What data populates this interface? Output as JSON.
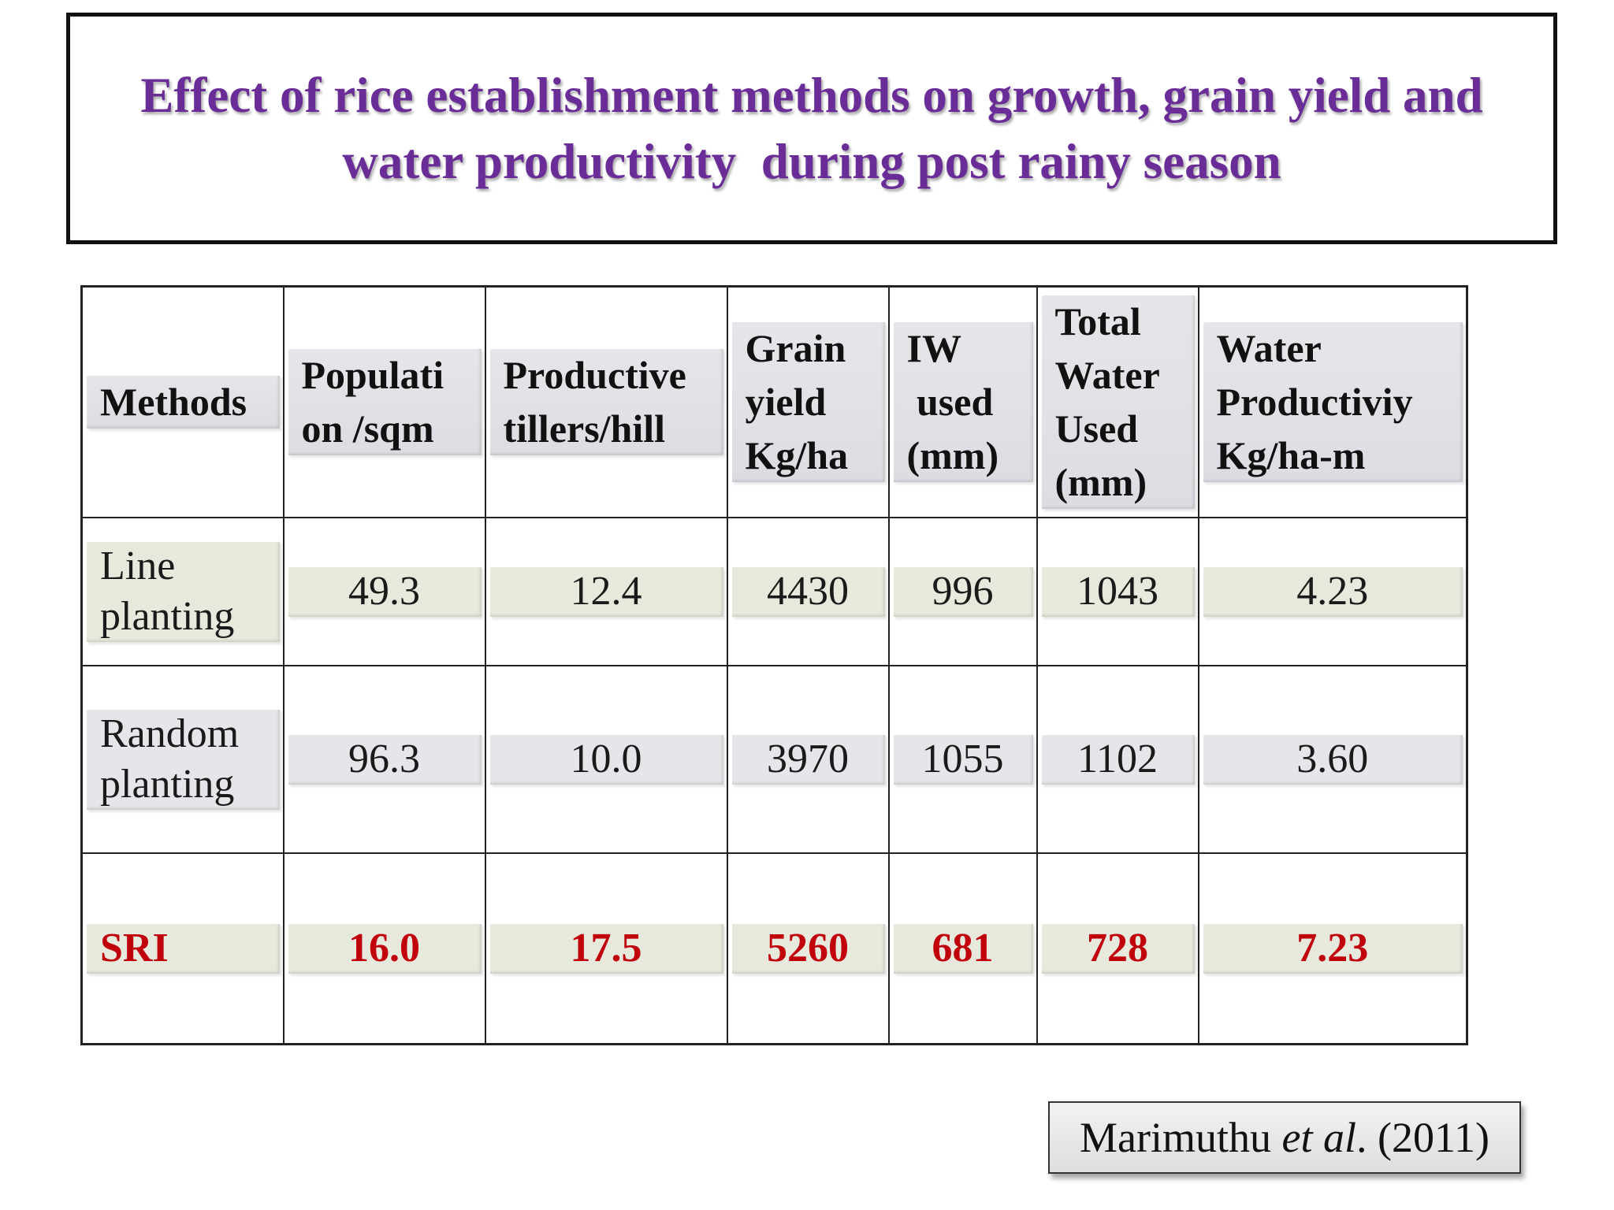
{
  "title": {
    "line1": "Effect of rice establishment methods on growth, grain yield and",
    "line2": "water productivity  during post rainy season"
  },
  "table": {
    "headers": [
      [
        "Methods"
      ],
      [
        "Populati",
        "on /sqm"
      ],
      [
        "Productive",
        "tillers/hill"
      ],
      [
        "Grain",
        "yield",
        "Kg/ha"
      ],
      [
        "IW",
        " used",
        "(mm)"
      ],
      [
        "Total",
        "Water",
        "Used",
        "(mm)"
      ],
      [
        "Water",
        "Productiviy",
        "Kg/ha-m"
      ]
    ],
    "rows": [
      {
        "method": [
          "Line",
          "planting"
        ],
        "values": [
          "49.3",
          "12.4",
          "4430",
          "996",
          "1043",
          "4.23"
        ]
      },
      {
        "method": [
          "Random",
          "planting"
        ],
        "values": [
          "96.3",
          "10.0",
          "3970",
          "1055",
          "1102",
          "3.60"
        ]
      },
      {
        "method": [
          "SRI"
        ],
        "values": [
          "16.0",
          "17.5",
          "5260",
          "681",
          "728",
          "7.23"
        ]
      }
    ]
  },
  "citation": {
    "author": "Marimuthu ",
    "etal": "et al",
    "rest": ". (2011)"
  },
  "colors": {
    "title": "#6a2c97",
    "highlight": "#c0000a"
  }
}
